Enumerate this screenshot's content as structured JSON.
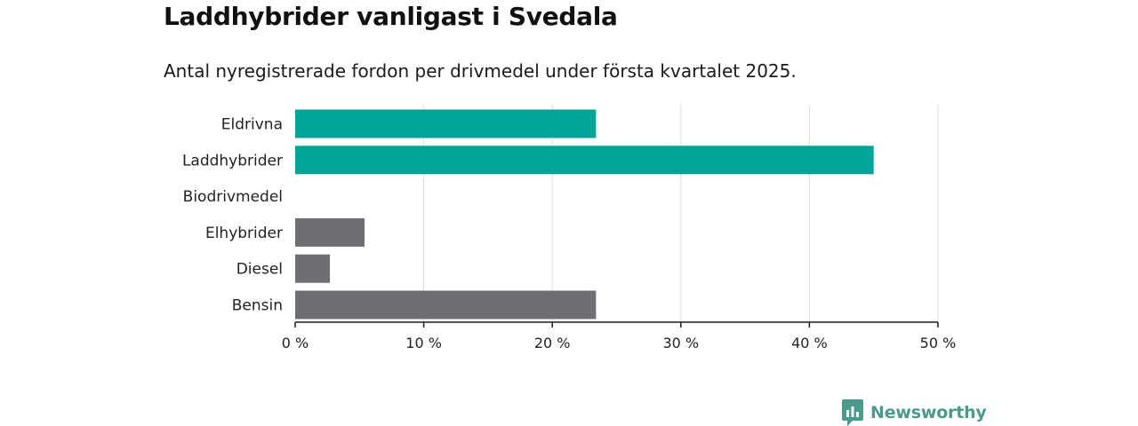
{
  "title": "Laddhybrider vanligast i Svedala",
  "subtitle": "Antal nyregistrerade fordon per drivmedel under första kvartalet 2025.",
  "brand": "Newsworthy",
  "colors": {
    "highlight": "#00a498",
    "default": "#6f6e73",
    "grid": "#dddddd",
    "axis": "#1a1a1a",
    "brand": "#4a9a8e"
  },
  "chart_data": {
    "type": "bar",
    "orientation": "horizontal",
    "categories": [
      "Eldrivna",
      "Laddhybrider",
      "Biodrivmedel",
      "Elhybrider",
      "Diesel",
      "Bensin"
    ],
    "values": [
      23.4,
      45.0,
      0,
      5.4,
      2.7,
      23.4
    ],
    "highlighted": [
      true,
      true,
      false,
      false,
      false,
      false
    ],
    "xlim": [
      0,
      50
    ],
    "xticks": [
      0,
      10,
      20,
      30,
      40,
      50
    ],
    "xtick_labels": [
      "0 %",
      "10 %",
      "20 %",
      "30 %",
      "40 %",
      "50 %"
    ],
    "grid": true
  }
}
